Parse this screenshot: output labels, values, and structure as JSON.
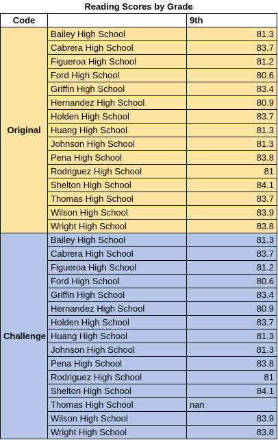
{
  "title": "Reading Scores by Grade",
  "headers": {
    "code": "Code",
    "school": "",
    "grade": "9th"
  },
  "colors": {
    "original": "#fde4a3",
    "challenge": "#b4c6e7"
  },
  "groups": [
    {
      "label": "Original",
      "rows": [
        {
          "school": "Bailey High School",
          "score": "81.3"
        },
        {
          "school": "Cabrera High School",
          "score": "83.7"
        },
        {
          "school": "Figueroa High School",
          "score": "81.2"
        },
        {
          "school": "Ford High School",
          "score": "80.6"
        },
        {
          "school": "Griffin High School",
          "score": "83.4"
        },
        {
          "school": "Hernandez High School",
          "score": "80.9"
        },
        {
          "school": "Holden High School",
          "score": "83.7"
        },
        {
          "school": "Huang High School",
          "score": "81.3"
        },
        {
          "school": "Johnson High School",
          "score": "81.3"
        },
        {
          "school": "Pena High School",
          "score": "83.8"
        },
        {
          "school": "Rodriguez High School",
          "score": "81"
        },
        {
          "school": "Shelton High School",
          "score": "84.1"
        },
        {
          "school": "Thomas High School",
          "score": "83.7"
        },
        {
          "school": "Wilson High School",
          "score": "83.9"
        },
        {
          "school": "Wright High School",
          "score": "83.8"
        }
      ]
    },
    {
      "label": "Challenge",
      "rows": [
        {
          "school": "Bailey High School",
          "score": "81.3"
        },
        {
          "school": "Cabrera High School",
          "score": "83.7"
        },
        {
          "school": "Figueroa High School",
          "score": "81.2"
        },
        {
          "school": "Ford High School",
          "score": "80.6"
        },
        {
          "school": "Griffin High School",
          "score": "83.4"
        },
        {
          "school": "Hernandez High School",
          "score": "80.9"
        },
        {
          "school": "Holden High School",
          "score": "83.7"
        },
        {
          "school": "Huang High School",
          "score": "81.3"
        },
        {
          "school": "Johnson High School",
          "score": "81.3"
        },
        {
          "school": "Pena High School",
          "score": "83.8"
        },
        {
          "school": "Rodriguez High School",
          "score": "81"
        },
        {
          "school": "Shelton High School",
          "score": "84.1"
        },
        {
          "school": "Thomas High School",
          "score": "nan",
          "align": "left"
        },
        {
          "school": "Wilson High School",
          "score": "83.9"
        },
        {
          "school": "Wright High School",
          "score": "83.8"
        }
      ]
    }
  ]
}
